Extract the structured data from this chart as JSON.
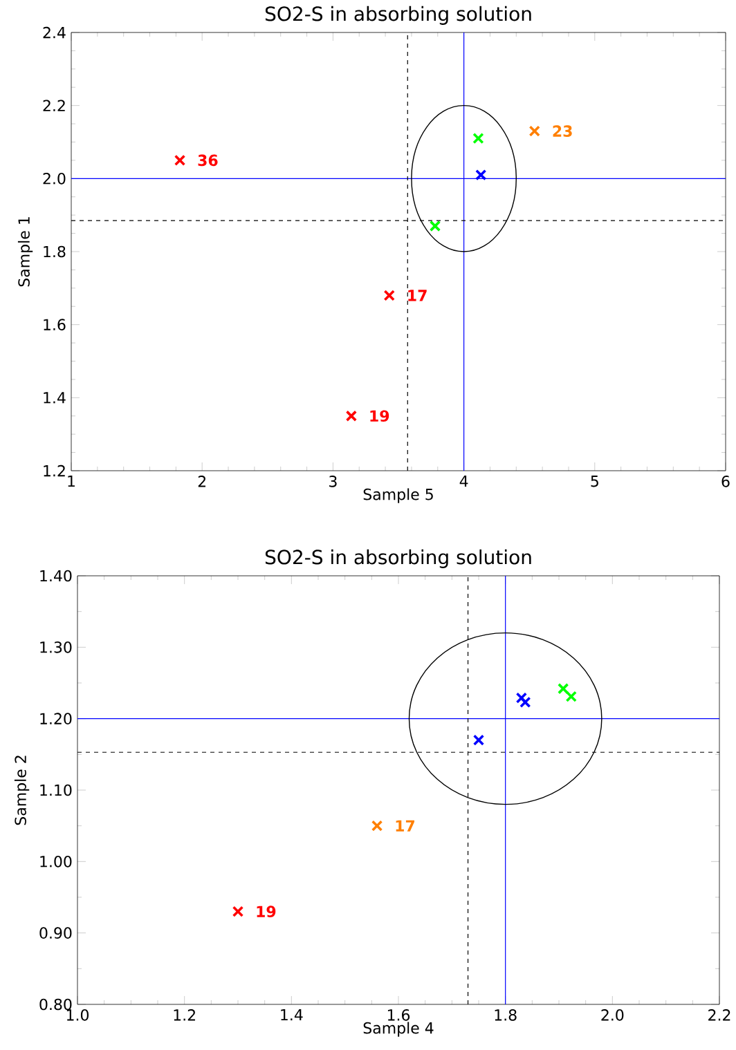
{
  "chart_data": [
    {
      "type": "scatter",
      "title": "SO2-S in absorbing solution",
      "xlabel": "Sample 5",
      "ylabel": "Sample 1",
      "xlim": [
        1,
        6
      ],
      "ylim": [
        1.2,
        2.4
      ],
      "xticks": [
        {
          "value": 1,
          "label": "1"
        },
        {
          "value": 2,
          "label": "2"
        },
        {
          "value": 3,
          "label": "3"
        },
        {
          "value": 4,
          "label": "4"
        },
        {
          "value": 5,
          "label": "5"
        },
        {
          "value": 6,
          "label": "6"
        }
      ],
      "yticks": [
        {
          "value": 1.2,
          "label": "1.2"
        },
        {
          "value": 1.4,
          "label": "1.4"
        },
        {
          "value": 1.6,
          "label": "1.6"
        },
        {
          "value": 1.8,
          "label": "1.8"
        },
        {
          "value": 2.0,
          "label": "2.0"
        },
        {
          "value": 2.2,
          "label": "2.2"
        },
        {
          "value": 2.4,
          "label": "2.4"
        }
      ],
      "series": [
        {
          "color": "#ff0000",
          "marker": "cross",
          "x": [
            1.83,
            3.43,
            3.14
          ],
          "values": [
            2.05,
            1.68,
            1.35
          ]
        },
        {
          "color": "#ff7f00",
          "marker": "cross",
          "x": [
            4.54
          ],
          "values": [
            2.13
          ]
        },
        {
          "color": "#00ff00",
          "marker": "cross",
          "x": [
            4.11,
            3.78
          ],
          "values": [
            2.11,
            1.87
          ]
        },
        {
          "color": "#0000ff",
          "marker": "cross",
          "x": [
            4.13
          ],
          "values": [
            2.01
          ]
        }
      ],
      "annotations": [
        {
          "text": "36",
          "x": 1.83,
          "y": 2.05
        },
        {
          "text": "17",
          "x": 3.43,
          "y": 1.68
        },
        {
          "text": "19",
          "x": 3.14,
          "y": 1.35
        },
        {
          "text": "23",
          "x": 4.54,
          "y": 2.13
        }
      ],
      "ref_lines": [
        {
          "axis": "x",
          "value": 4,
          "color": "#0000ff",
          "line_style": "solid"
        },
        {
          "axis": "y",
          "value": 2.0,
          "color": "#0000ff",
          "line_style": "solid"
        },
        {
          "axis": "x",
          "value": 3.57,
          "color": "#000000",
          "line_style": "dashed"
        },
        {
          "axis": "y",
          "value": 1.885,
          "color": "#000000",
          "line_style": "dashed"
        }
      ]
    },
    {
      "type": "scatter",
      "title": "SO2-S in absorbing solution",
      "xlabel": "Sample 4",
      "ylabel": "Sample 2",
      "xlim": [
        1.0,
        2.2
      ],
      "ylim": [
        0.8,
        1.4
      ],
      "xticks": [
        {
          "value": 1.0,
          "label": "1.0"
        },
        {
          "value": 1.2,
          "label": "1.2"
        },
        {
          "value": 1.4,
          "label": "1.4"
        },
        {
          "value": 1.6,
          "label": "1.6"
        },
        {
          "value": 1.8,
          "label": "1.8"
        },
        {
          "value": 2.0,
          "label": "2.0"
        },
        {
          "value": 2.2,
          "label": "2.2"
        }
      ],
      "yticks": [
        {
          "value": 0.8,
          "label": "0.80"
        },
        {
          "value": 0.9,
          "label": "0.90"
        },
        {
          "value": 1.0,
          "label": "1.00"
        },
        {
          "value": 1.1,
          "label": "1.10"
        },
        {
          "value": 1.2,
          "label": "1.20"
        },
        {
          "value": 1.3,
          "label": "1.30"
        },
        {
          "value": 1.4,
          "label": "1.40"
        }
      ],
      "series": [
        {
          "color": "#ff0000",
          "marker": "cross",
          "x": [
            1.3
          ],
          "values": [
            0.93
          ]
        },
        {
          "color": "#ff7f00",
          "marker": "cross",
          "x": [
            1.56
          ],
          "values": [
            1.05
          ]
        },
        {
          "color": "#0000ff",
          "marker": "cross",
          "x": [
            1.75,
            1.83,
            1.837
          ],
          "values": [
            1.17,
            1.229,
            1.223
          ]
        },
        {
          "color": "#00ff00",
          "marker": "cross",
          "x": [
            1.908,
            1.923
          ],
          "values": [
            1.242,
            1.231
          ]
        }
      ],
      "annotations": [
        {
          "text": "19",
          "x": 1.3,
          "y": 0.93
        },
        {
          "text": "17",
          "x": 1.56,
          "y": 1.05
        }
      ],
      "ref_lines": [
        {
          "axis": "x",
          "value": 1.8,
          "color": "#0000ff",
          "line_style": "solid"
        },
        {
          "axis": "y",
          "value": 1.2,
          "color": "#0000ff",
          "line_style": "solid"
        },
        {
          "axis": "x",
          "value": 1.73,
          "color": "#000000",
          "line_style": "dashed"
        },
        {
          "axis": "y",
          "value": 1.153,
          "color": "#000000",
          "line_style": "dashed"
        }
      ]
    }
  ]
}
